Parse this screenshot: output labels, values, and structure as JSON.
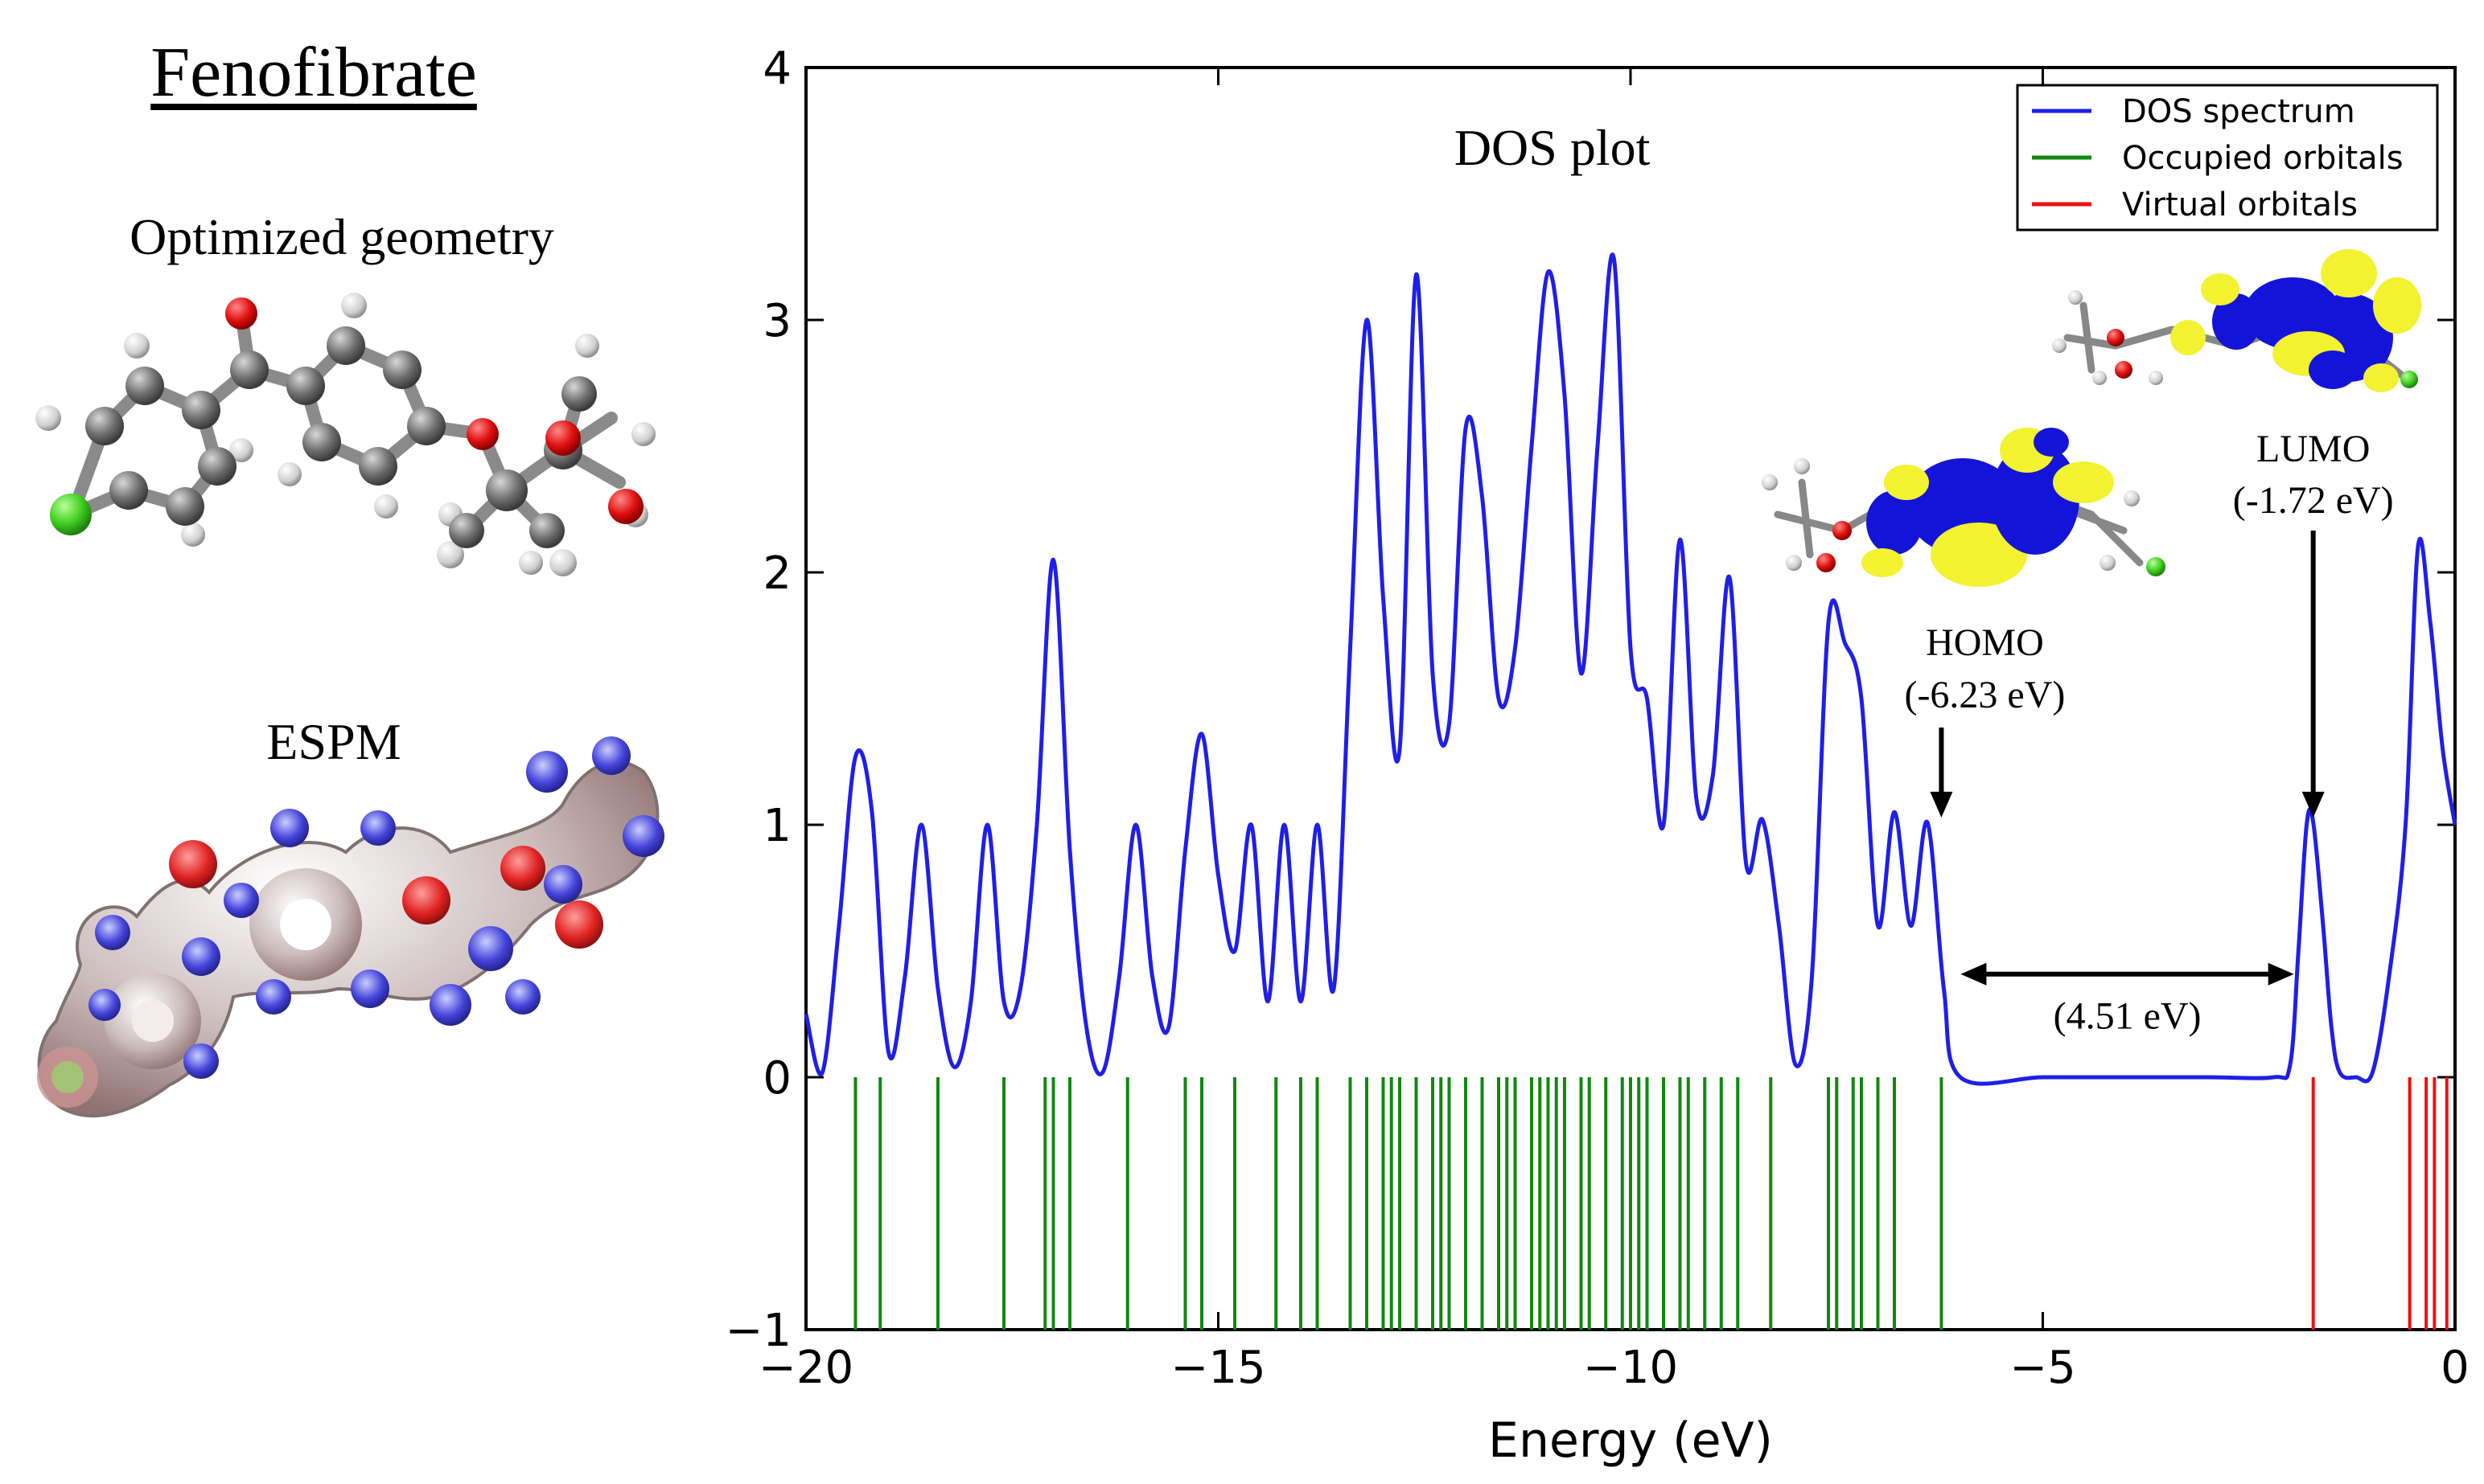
{
  "panel": {
    "title": "Fenofibrate",
    "geometry_label": "Optimized geometry",
    "espm_label": "ESPM"
  },
  "chart_data": {
    "type": "line",
    "title": "DOS plot",
    "xlabel": "Energy (eV)",
    "ylabel": "",
    "xlim": [
      -20,
      0
    ],
    "ylim": [
      -1,
      4
    ],
    "x_ticks": [
      -20,
      -15,
      -10,
      -5,
      0
    ],
    "y_ticks": [
      -1,
      0,
      1,
      2,
      3,
      4
    ],
    "x_tick_labels": [
      "−20",
      "−15",
      "−10",
      "−5",
      "0"
    ],
    "y_tick_labels": [
      "−1",
      "0",
      "1",
      "2",
      "3",
      "4"
    ],
    "grid": false,
    "legend": {
      "placement": "top-right",
      "entries": [
        {
          "name": "DOS spectrum",
          "color": "#1f1fe8"
        },
        {
          "name": "Occupied orbitals",
          "color": "#118811"
        },
        {
          "name": "Virtual orbitals",
          "color": "#ee1111"
        }
      ]
    },
    "series": [
      {
        "name": "DOS spectrum",
        "color": "#1f1fe8",
        "x": [
          -20.0,
          -19.8,
          -19.6,
          -19.4,
          -19.2,
          -19.0,
          -18.8,
          -18.6,
          -18.4,
          -18.2,
          -18.0,
          -17.8,
          -17.6,
          -17.4,
          -17.2,
          -17.0,
          -16.8,
          -16.6,
          -16.4,
          -16.2,
          -16.0,
          -15.8,
          -15.6,
          -15.4,
          -15.2,
          -15.0,
          -14.8,
          -14.6,
          -14.4,
          -14.2,
          -14.0,
          -13.8,
          -13.6,
          -13.4,
          -13.2,
          -13.0,
          -12.8,
          -12.6,
          -12.4,
          -12.2,
          -12.0,
          -11.8,
          -11.6,
          -11.4,
          -11.2,
          -11.0,
          -10.8,
          -10.6,
          -10.4,
          -10.2,
          -10.0,
          -9.8,
          -9.6,
          -9.4,
          -9.2,
          -9.0,
          -8.8,
          -8.6,
          -8.4,
          -8.2,
          -8.0,
          -7.8,
          -7.6,
          -7.4,
          -7.2,
          -7.0,
          -6.8,
          -6.6,
          -6.4,
          -6.2,
          -6.0,
          -5.0,
          -4.0,
          -3.0,
          -2.2,
          -2.0,
          -1.9,
          -1.8,
          -1.72,
          -1.6,
          -1.5,
          -1.4,
          -1.2,
          -1.0,
          -0.8,
          -0.6,
          -0.45,
          -0.3,
          -0.15,
          0.0
        ],
        "y": [
          0.25,
          0.02,
          0.6,
          1.27,
          1.05,
          0.1,
          0.4,
          1.0,
          0.35,
          0.04,
          0.3,
          1.0,
          0.3,
          0.35,
          1.0,
          2.05,
          0.9,
          0.2,
          0.02,
          0.4,
          1.0,
          0.4,
          0.2,
          0.9,
          1.36,
          0.8,
          0.5,
          1.0,
          0.3,
          1.0,
          0.3,
          1.0,
          0.35,
          1.7,
          3.0,
          1.9,
          1.3,
          3.18,
          1.6,
          1.4,
          2.57,
          2.3,
          1.5,
          1.7,
          2.5,
          3.19,
          2.7,
          1.6,
          2.5,
          3.24,
          1.7,
          1.5,
          1.0,
          2.13,
          1.1,
          1.2,
          1.98,
          0.85,
          1.02,
          0.6,
          0.05,
          0.4,
          1.8,
          1.72,
          1.5,
          0.6,
          1.05,
          0.6,
          1.01,
          0.35,
          0.0,
          0.0,
          0.0,
          0.0,
          0.0,
          0.05,
          0.5,
          1.0,
          1.01,
          0.6,
          0.2,
          0.02,
          0.0,
          0.02,
          0.4,
          1.0,
          2.1,
          1.8,
          1.3,
          1.0
        ]
      }
    ],
    "occupied_orbitals": [
      -19.4,
      -19.1,
      -18.4,
      -17.6,
      -17.1,
      -17.0,
      -16.8,
      -16.1,
      -15.4,
      -15.2,
      -14.8,
      -14.3,
      -14.0,
      -13.8,
      -13.4,
      -13.2,
      -13.0,
      -12.9,
      -12.8,
      -12.6,
      -12.4,
      -12.3,
      -12.2,
      -12.0,
      -11.8,
      -11.6,
      -11.5,
      -11.4,
      -11.2,
      -11.1,
      -11.0,
      -10.9,
      -10.8,
      -10.6,
      -10.5,
      -10.3,
      -10.1,
      -10.0,
      -9.9,
      -9.8,
      -9.6,
      -9.4,
      -9.3,
      -9.1,
      -8.9,
      -8.7,
      -8.3,
      -7.6,
      -7.5,
      -7.3,
      -7.2,
      -7.0,
      -6.8,
      -6.23
    ],
    "virtual_orbitals": [
      -1.72,
      -0.55,
      -0.35,
      -0.25,
      -0.1
    ],
    "annotations": [
      {
        "label": "HOMO",
        "value": "(-6.23 eV)",
        "x": -6.23,
        "y": 1.01
      },
      {
        "label": "LUMO",
        "value": "(-1.72 eV)",
        "x": -1.72,
        "y": 1.01
      },
      {
        "label": "(4.51 eV)",
        "x_from": -6.23,
        "x_to": -1.72,
        "y": 0.45
      }
    ]
  }
}
